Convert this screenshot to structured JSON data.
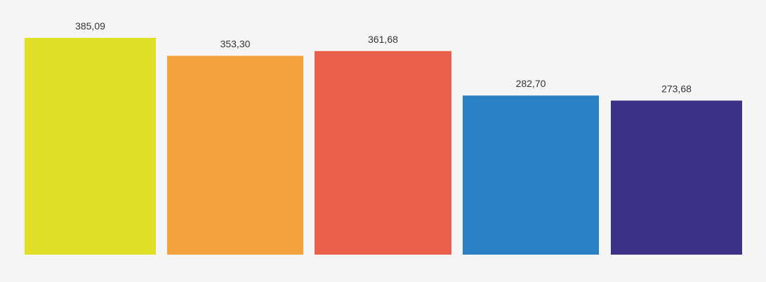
{
  "chart_data": {
    "type": "bar",
    "title": "",
    "xlabel": "",
    "ylabel": "",
    "values": [
      385.09,
      353.3,
      361.68,
      282.7,
      273.68
    ],
    "value_labels": [
      "385,09",
      "353,30",
      "361,68",
      "282,70",
      "273,68"
    ],
    "ylim": [
      0,
      400
    ],
    "grid": false,
    "legend": "none",
    "colors": [
      "#dfdf27",
      "#f5a33e",
      "#ea604d",
      "#2b80c4",
      "#3b3287"
    ],
    "background": "#f5f5f5"
  }
}
